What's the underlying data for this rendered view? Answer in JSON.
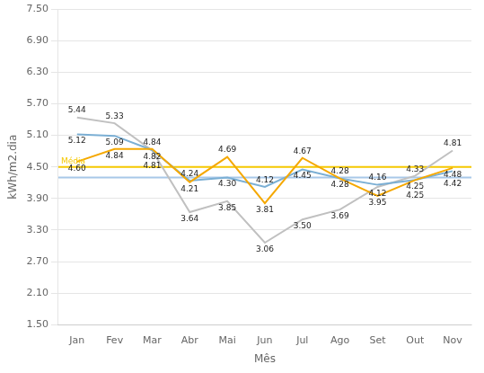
{
  "chart_data": {
    "type": "line",
    "x_label": "Mês",
    "y_label": "kWh/m2.dia",
    "categories": [
      "Jan",
      "Fev",
      "Mar",
      "Abr",
      "Mai",
      "Jun",
      "Jul",
      "Ago",
      "Set",
      "Out",
      "Nov"
    ],
    "series": [
      {
        "color": "#C0C0C0",
        "values": [
          5.44,
          5.33,
          4.81,
          3.64,
          3.85,
          3.06,
          3.5,
          3.69,
          4.12,
          4.33,
          4.81
        ],
        "value_labels": [
          "5.44",
          "5.33",
          "4.81",
          "3.64",
          "3.85",
          "3.06",
          "3.50",
          "3.69",
          "4.12",
          "4.33",
          "4.81"
        ]
      },
      {
        "color": "#7BAFD4",
        "values": [
          5.12,
          5.09,
          4.82,
          4.24,
          4.3,
          4.12,
          4.45,
          4.28,
          4.16,
          4.25,
          4.42
        ],
        "value_labels": [
          "5.12",
          "5.09",
          "4.82",
          "4.24",
          "4.30",
          "4.12",
          "4.45",
          "4.28",
          "4.16",
          "4.25",
          "4.42"
        ]
      },
      {
        "color": "#F5A800",
        "values": [
          4.6,
          4.84,
          4.84,
          4.21,
          4.69,
          3.81,
          4.67,
          4.28,
          3.95,
          4.25,
          4.48
        ],
        "value_labels": [
          "4.60",
          "4.84",
          "4.84",
          "4.21",
          "4.69",
          "3.81",
          "4.67",
          "4.28",
          "3.95",
          "4.25",
          "4.48"
        ]
      }
    ],
    "reference_lines": [
      {
        "value": 4.3,
        "color": "#A8C8E8"
      },
      {
        "value": 4.5,
        "color": "#F5C800",
        "label": "Média"
      }
    ],
    "ylim": [
      1.5,
      7.5
    ],
    "yticks": [
      {
        "value": 1.5,
        "label": "1.50"
      },
      {
        "value": 2.1,
        "label": "2.10"
      },
      {
        "value": 2.7,
        "label": "2.70"
      },
      {
        "value": 3.3,
        "label": "3.30"
      },
      {
        "value": 3.9,
        "label": "3.90"
      },
      {
        "value": 4.5,
        "label": "4.50"
      },
      {
        "value": 5.1,
        "label": "5.10"
      },
      {
        "value": 5.7,
        "label": "5.70"
      },
      {
        "value": 6.3,
        "label": "6.30"
      },
      {
        "value": 6.9,
        "label": "6.90"
      },
      {
        "value": 7.5,
        "label": "7.50"
      }
    ],
    "grid": "y",
    "data_labels": true
  }
}
